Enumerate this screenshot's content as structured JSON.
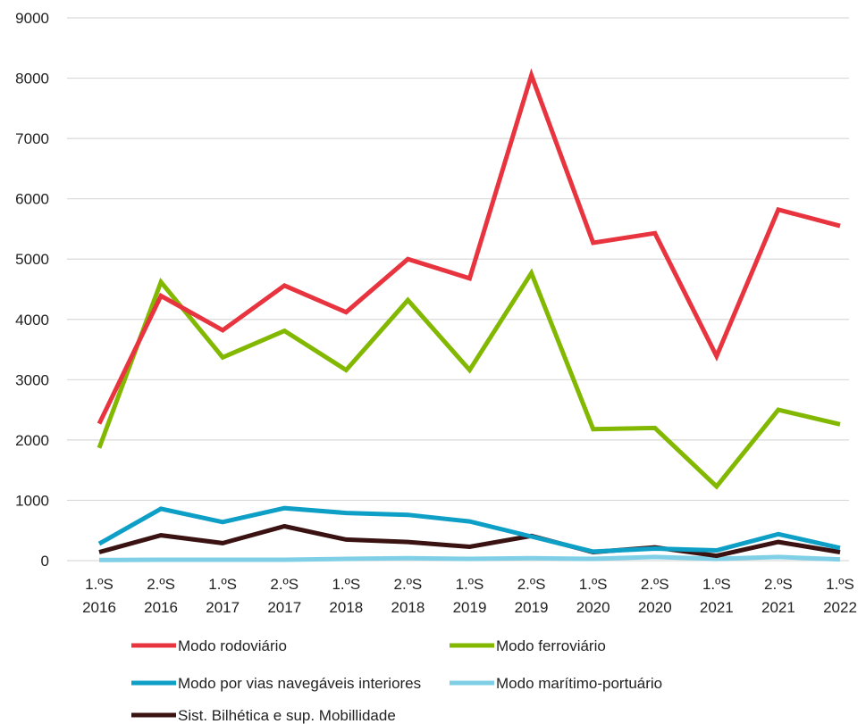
{
  "chart_data": {
    "type": "line",
    "categories": [
      [
        "1.ºS",
        "2016"
      ],
      [
        "2.ºS",
        "2016"
      ],
      [
        "1.ºS",
        "2017"
      ],
      [
        "2.ºS",
        "2017"
      ],
      [
        "1.ºS",
        "2018"
      ],
      [
        "2.ºS",
        "2018"
      ],
      [
        "1.ºS",
        "2019"
      ],
      [
        "2.ºS",
        "2019"
      ],
      [
        "1.ºS",
        "2020"
      ],
      [
        "2.ºS",
        "2020"
      ],
      [
        "1.ºS",
        "2021"
      ],
      [
        "2.ºS",
        "2021"
      ],
      [
        "1.ºS",
        "2022"
      ]
    ],
    "ylim": [
      0,
      9000
    ],
    "yticks": [
      0,
      1000,
      2000,
      3000,
      4000,
      5000,
      6000,
      7000,
      8000,
      9000
    ],
    "grid": true,
    "legend_position": "bottom",
    "series": [
      {
        "name": "Modo rodoviário",
        "color": "#E8343F",
        "values": [
          2270,
          4390,
          3820,
          4560,
          4120,
          5000,
          4680,
          8050,
          5270,
          5430,
          3390,
          5820,
          5550
        ]
      },
      {
        "name": "Modo ferroviário",
        "color": "#82B800",
        "values": [
          1870,
          4620,
          3370,
          3810,
          3160,
          4320,
          3160,
          4770,
          2180,
          2200,
          1230,
          2500,
          2260
        ]
      },
      {
        "name": "Modo por vias navegáveis interiores",
        "color": "#0E9FC6",
        "values": [
          280,
          860,
          640,
          870,
          790,
          760,
          650,
          400,
          150,
          200,
          170,
          440,
          210
        ]
      },
      {
        "name": "Modo marítimo-portuário",
        "color": "#7FD0E6",
        "values": [
          10,
          15,
          15,
          15,
          30,
          40,
          30,
          40,
          30,
          60,
          30,
          60,
          20
        ]
      },
      {
        "name": "Sist. Bilhética e sup. Mobillidade",
        "color": "#3A1212",
        "values": [
          140,
          420,
          290,
          570,
          350,
          310,
          230,
          410,
          140,
          220,
          80,
          310,
          140
        ]
      }
    ]
  }
}
